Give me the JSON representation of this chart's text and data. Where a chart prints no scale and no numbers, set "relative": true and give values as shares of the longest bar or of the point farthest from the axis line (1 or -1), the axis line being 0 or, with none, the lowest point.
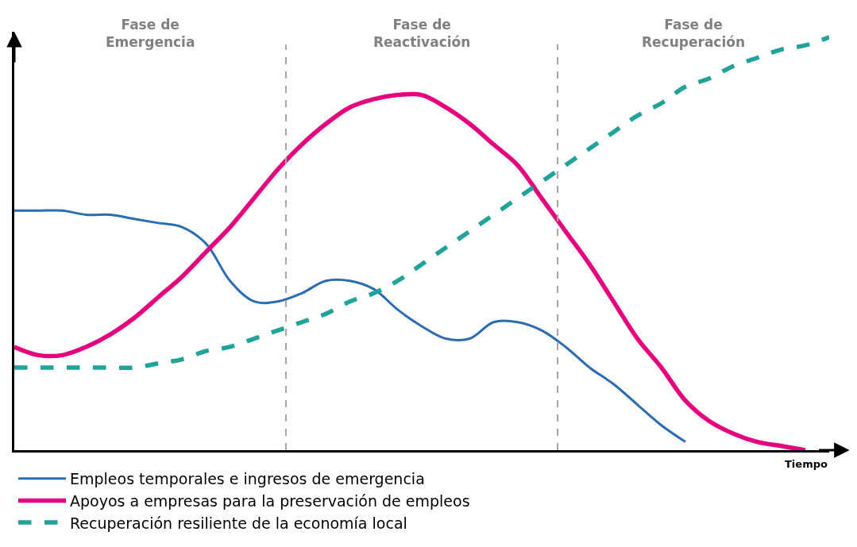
{
  "chart_data": {
    "type": "line",
    "relative": true,
    "xlabel": "Tiempo",
    "categories": [
      null,
      null,
      null,
      null,
      null,
      null,
      null,
      null,
      null,
      null,
      null,
      null,
      null,
      null,
      null,
      null,
      null,
      null,
      null,
      null,
      null,
      null,
      null,
      null,
      null,
      null,
      null,
      null,
      null,
      null,
      null,
      null,
      null,
      null,
      null
    ],
    "series": [
      {
        "name": "Empleos temporales e ingresos de emergencia",
        "color": "#2a6db3",
        "line_style": "solid",
        "values": [
          0.58,
          0.58,
          0.58,
          0.57,
          0.57,
          0.56,
          0.55,
          0.54,
          0.5,
          0.41,
          0.36,
          0.36,
          0.38,
          0.41,
          0.41,
          0.39,
          0.34,
          0.3,
          0.27,
          0.27,
          0.31,
          0.31,
          0.29,
          0.25,
          0.2,
          0.16,
          0.11,
          0.06,
          0.02,
          null,
          null,
          null,
          null,
          null,
          null
        ]
      },
      {
        "name": "Apoyos a empresas para la preservación de empleos",
        "color": "#e6007e",
        "line_style": "solid",
        "values": [
          0.25,
          0.23,
          0.23,
          0.25,
          0.28,
          0.32,
          0.37,
          0.42,
          0.48,
          0.54,
          0.61,
          0.68,
          0.74,
          0.79,
          0.83,
          0.85,
          0.86,
          0.86,
          0.83,
          0.79,
          0.74,
          0.69,
          0.61,
          0.53,
          0.45,
          0.36,
          0.27,
          0.2,
          0.12,
          0.07,
          0.04,
          0.02,
          0.01,
          0.0,
          null
        ]
      },
      {
        "name": "Recuperación resiliente de la economía local",
        "color": "#1fa39a",
        "line_style": "dashed",
        "values": [
          0.2,
          0.2,
          0.2,
          0.2,
          0.2,
          0.2,
          0.21,
          0.22,
          0.24,
          0.25,
          0.27,
          0.29,
          0.31,
          0.33,
          0.36,
          0.38,
          0.41,
          0.45,
          0.49,
          0.53,
          0.57,
          0.61,
          0.65,
          0.69,
          0.73,
          0.77,
          0.81,
          0.84,
          0.88,
          0.9,
          0.93,
          0.95,
          0.97,
          0.98,
          1.0
        ]
      }
    ],
    "annotations": [
      "Fase de\nEmergencia",
      "Fase de\nReactivación",
      "Fase de\nRecuperación"
    ],
    "legend": "bottom left",
    "tick_labels": false
  }
}
